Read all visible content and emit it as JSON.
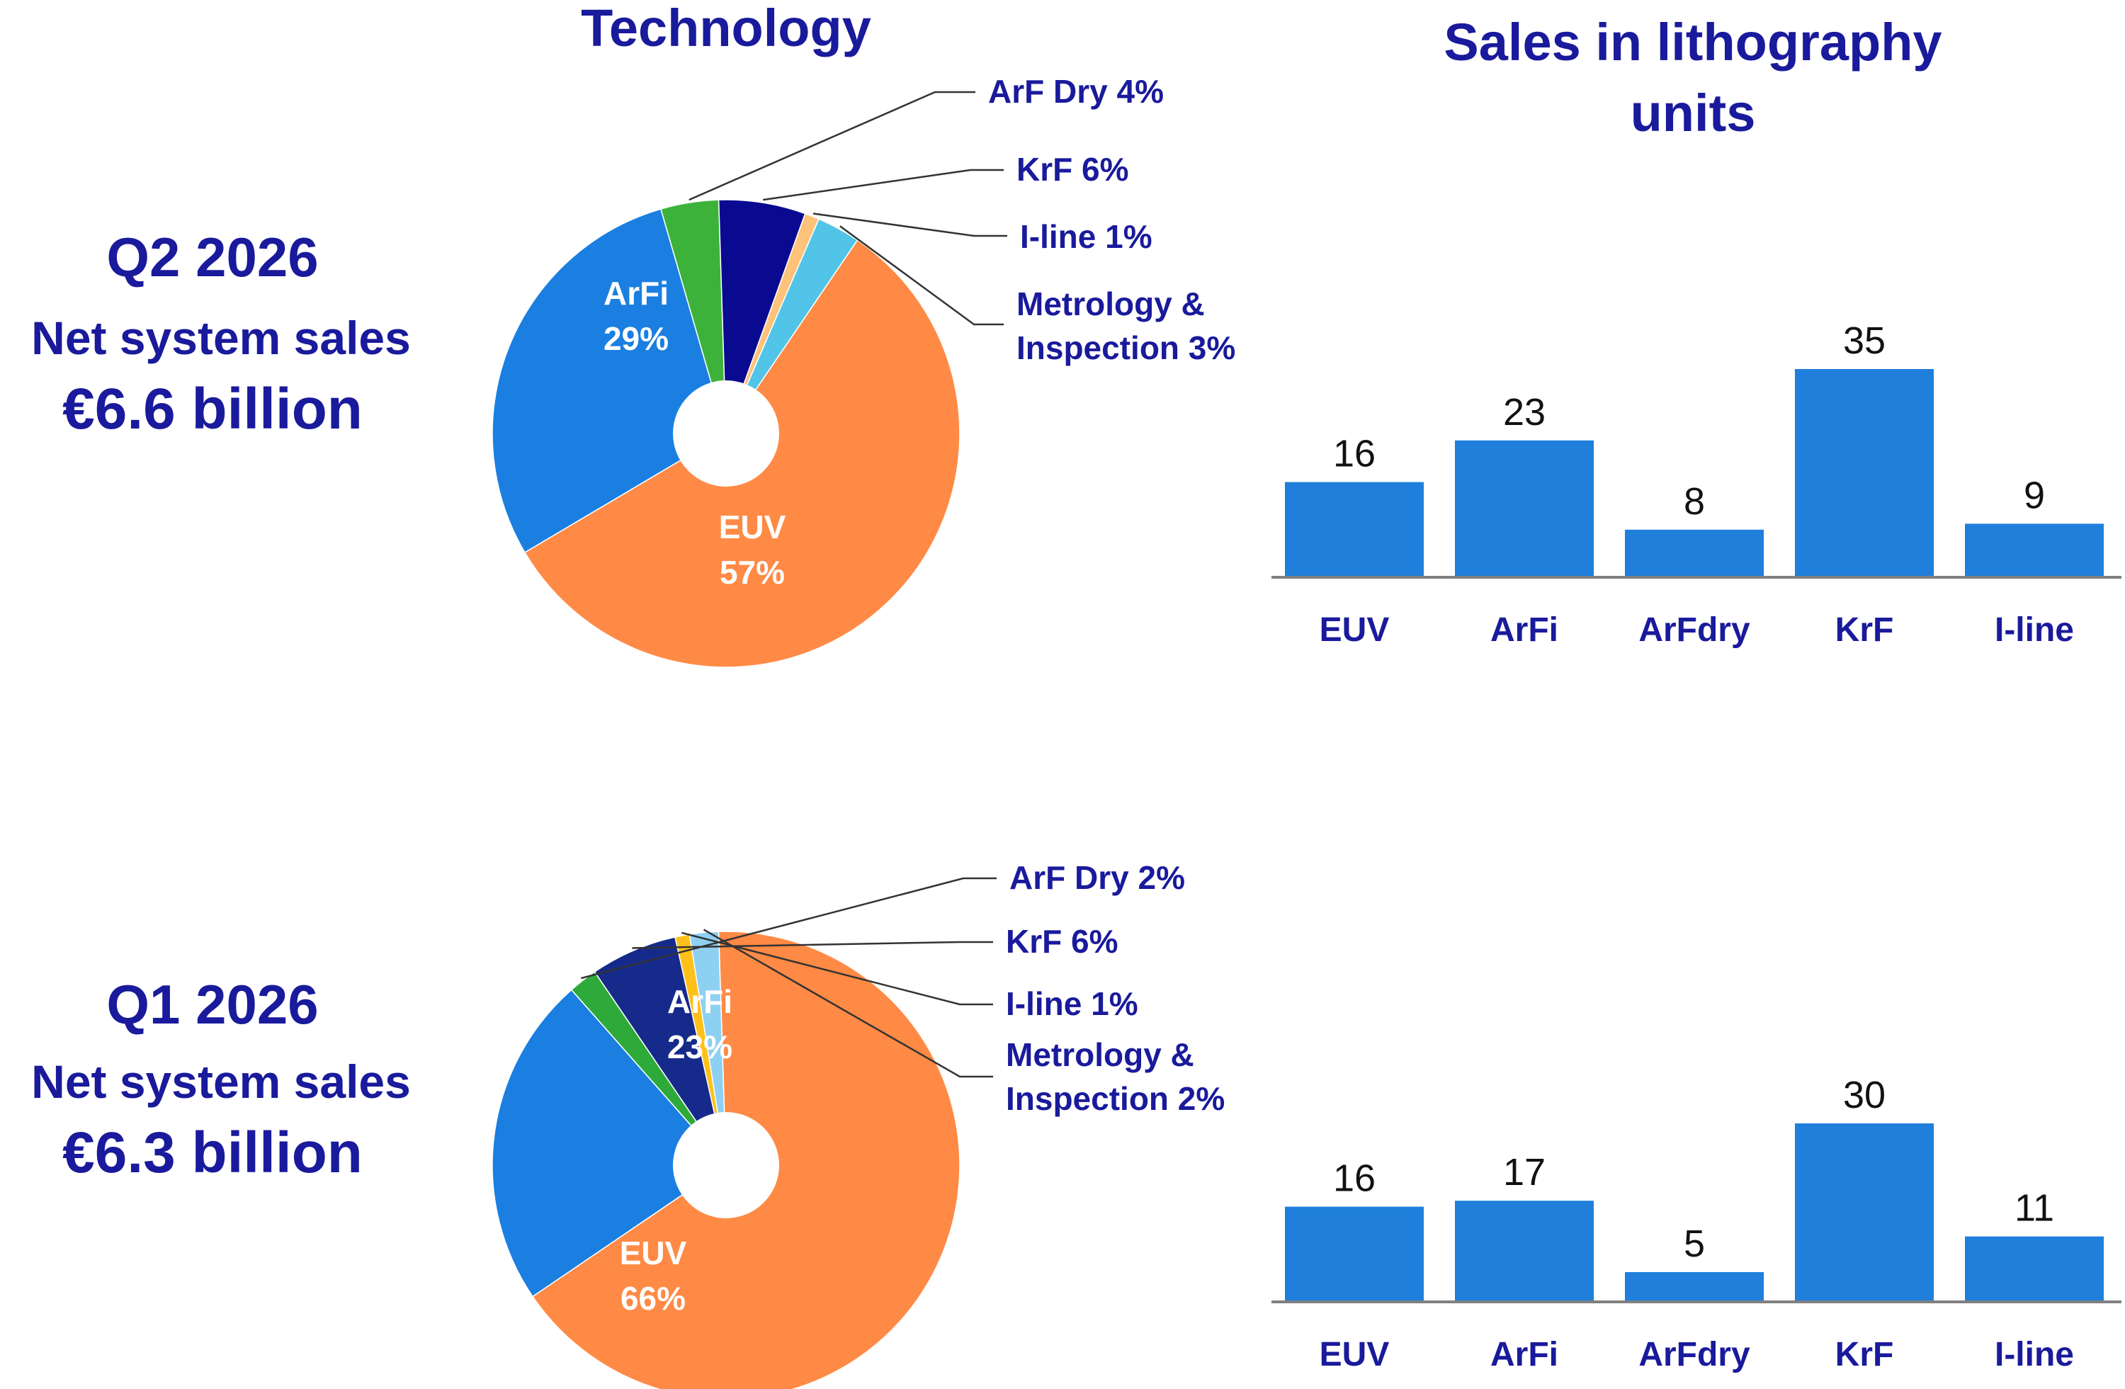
{
  "headings": {
    "technology": "Technology",
    "sales_units": [
      "Sales in lithography",
      "units"
    ]
  },
  "palette": {
    "navy_text": "#1a1a9c",
    "bar_blue": "#1f7fdb",
    "axis_gray": "#808080"
  },
  "quarters": [
    {
      "period": "Q2 2026",
      "subtitle": "Net system sales",
      "amount": "€6.6 billion",
      "pie": {
        "slices": [
          {
            "name": "EUV",
            "value": 57,
            "color": "#ff8a45",
            "label": [
              "EUV",
              "57%"
            ]
          },
          {
            "name": "ArFi",
            "value": 29,
            "color": "#1a7fe0",
            "label": [
              "ArFi",
              "29%"
            ]
          },
          {
            "name": "ArF Dry",
            "value": 4,
            "color": "#3db23a",
            "label": [
              "ArF Dry 4%"
            ]
          },
          {
            "name": "KrF",
            "value": 6,
            "color": "#0a0a90",
            "label": [
              "KrF 6%"
            ]
          },
          {
            "name": "I-line",
            "value": 1,
            "color": "#ffc27a",
            "label": [
              "I-line 1%"
            ]
          },
          {
            "name": "Metrology & Inspection",
            "value": 3,
            "color": "#52c4e8",
            "label": [
              "Metrology &",
              "Inspection 3%"
            ]
          }
        ]
      },
      "bars": {
        "categories": [
          "EUV",
          "ArFi",
          "ArFdry",
          "KrF",
          "I-line"
        ],
        "values": [
          16,
          23,
          8,
          35,
          9
        ]
      }
    },
    {
      "period": "Q1 2026",
      "subtitle": "Net system sales",
      "amount": "€6.3 billion",
      "pie": {
        "slices": [
          {
            "name": "EUV",
            "value": 66,
            "color": "#ff8a45",
            "label": [
              "EUV",
              "66%"
            ]
          },
          {
            "name": "ArFi",
            "value": 23,
            "color": "#1a7fe0",
            "label": [
              "ArFi",
              "23%"
            ]
          },
          {
            "name": "ArF Dry",
            "value": 2,
            "color": "#2eaa3a",
            "label": [
              "ArF Dry 2%"
            ]
          },
          {
            "name": "KrF",
            "value": 6,
            "color": "#152a8a",
            "label": [
              "KrF 6%"
            ]
          },
          {
            "name": "I-line",
            "value": 1,
            "color": "#ffc01a",
            "label": [
              "I-line 1%"
            ]
          },
          {
            "name": "Metrology & Inspection",
            "value": 2,
            "color": "#8ed0f2",
            "label": [
              "Metrology &",
              "Inspection 2%"
            ]
          }
        ]
      },
      "bars": {
        "categories": [
          "EUV",
          "ArFi",
          "ArFdry",
          "KrF",
          "I-line"
        ],
        "values": [
          16,
          17,
          5,
          30,
          11
        ]
      }
    }
  ],
  "chart_data": [
    {
      "type": "pie",
      "title": "Technology",
      "period": "Q2 2026",
      "categories": [
        "EUV",
        "ArFi",
        "ArF Dry",
        "KrF",
        "I-line",
        "Metrology & Inspection"
      ],
      "values": [
        57,
        29,
        4,
        6,
        1,
        3
      ],
      "unit": "%"
    },
    {
      "type": "bar",
      "title": "Sales in lithography units",
      "period": "Q2 2026",
      "categories": [
        "EUV",
        "ArFi",
        "ArFdry",
        "KrF",
        "I-line"
      ],
      "values": [
        16,
        23,
        8,
        35,
        9
      ],
      "xlabel": "",
      "ylabel": "",
      "ylim": [
        0,
        35
      ],
      "grid": false
    },
    {
      "type": "pie",
      "title": "Technology",
      "period": "Q1 2026",
      "categories": [
        "EUV",
        "ArFi",
        "ArF Dry",
        "KrF",
        "I-line",
        "Metrology & Inspection"
      ],
      "values": [
        66,
        23,
        2,
        6,
        1,
        2
      ],
      "unit": "%"
    },
    {
      "type": "bar",
      "title": "Sales in lithography units",
      "period": "Q1 2026",
      "categories": [
        "EUV",
        "ArFi",
        "ArFdry",
        "KrF",
        "I-line"
      ],
      "values": [
        16,
        17,
        5,
        30,
        11
      ],
      "xlabel": "",
      "ylabel": "",
      "ylim": [
        0,
        35
      ],
      "grid": false
    }
  ]
}
